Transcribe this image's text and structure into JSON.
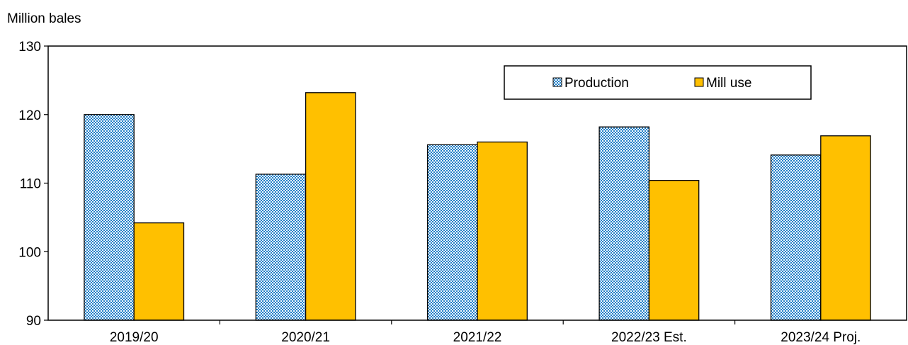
{
  "chart_data": {
    "type": "bar",
    "title": "",
    "ylabel": "Million bales",
    "xlabel": "",
    "ylim": [
      90,
      130
    ],
    "yticks": [
      90,
      100,
      110,
      120,
      130
    ],
    "grid": false,
    "legend_position": "top-right",
    "categories": [
      "2019/20",
      "2020/21",
      "2021/22",
      "2022/23 Est.",
      "2023/24 Proj."
    ],
    "series": [
      {
        "name": "Production",
        "values": [
          120.0,
          111.3,
          115.6,
          118.2,
          114.1
        ],
        "color": "#1f7fc8",
        "pattern": "blue-white crosshatch"
      },
      {
        "name": "Mill use",
        "values": [
          104.2,
          123.2,
          116.0,
          110.4,
          116.9
        ],
        "color": "#ffc000",
        "pattern": "solid"
      }
    ]
  }
}
